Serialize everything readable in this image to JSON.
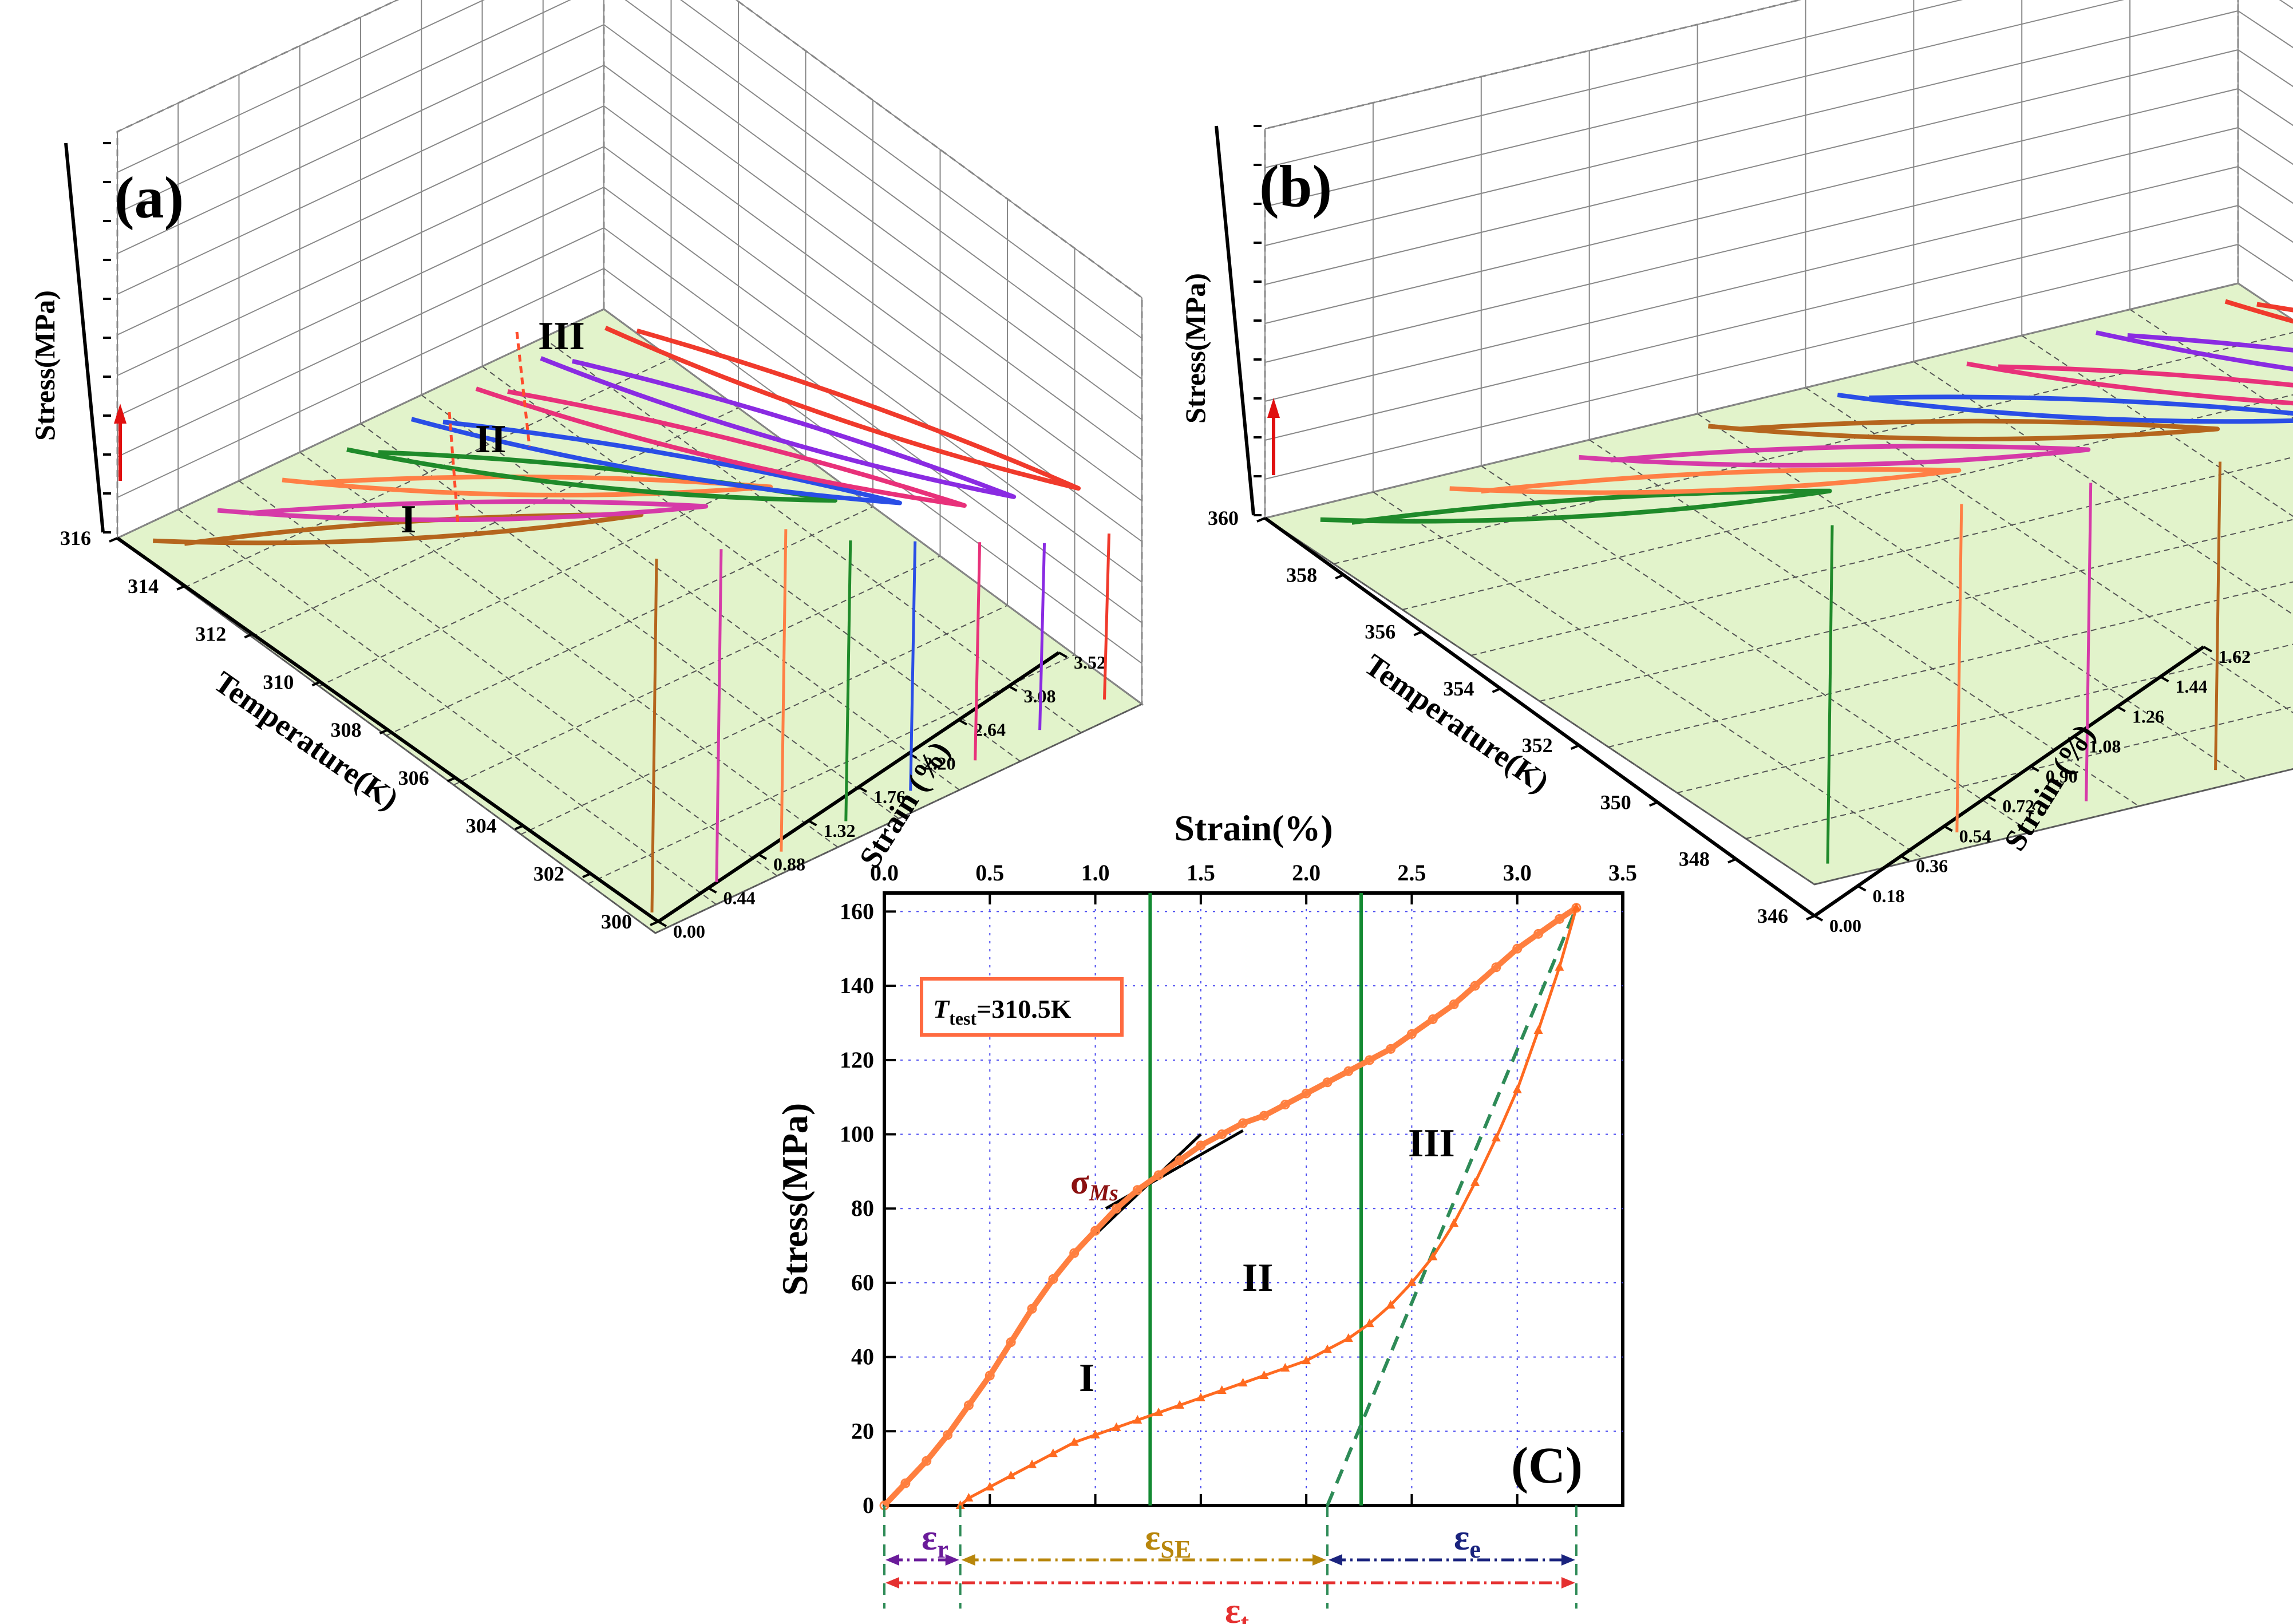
{
  "chart_data": [
    {
      "type": "line",
      "panel_label": "(a)",
      "zlabel": "Stress(MPa)",
      "ylabel": "Temperature(K)",
      "xlabel": "Strain (%)",
      "temperature_ticks": [
        "316",
        "314",
        "312",
        "310",
        "308",
        "306",
        "304",
        "302",
        "300"
      ],
      "strain_ticks": [
        "0.00",
        "0.44",
        "0.88",
        "1.32",
        "1.76",
        "2.20",
        "2.64",
        "3.08",
        "3.52"
      ],
      "region_labels": [
        "I",
        "II",
        "III"
      ],
      "strain_max": 3.52,
      "series": [
        {
          "name": "316K",
          "color": "#b5651d",
          "max_strain": 3.3,
          "max_stress": 175
        },
        {
          "name": "314K",
          "color": "#d63aa8",
          "max_strain": 3.3,
          "max_stress": 165
        },
        {
          "name": "312K",
          "color": "#ff7f45",
          "max_strain": 3.3,
          "max_stress": 160
        },
        {
          "name": "310K",
          "color": "#1f8a2a",
          "max_strain": 3.3,
          "max_stress": 140
        },
        {
          "name": "308K",
          "color": "#2a4ee6",
          "max_strain": 3.3,
          "max_stress": 125
        },
        {
          "name": "306K",
          "color": "#e8317a",
          "max_strain": 3.3,
          "max_stress": 110
        },
        {
          "name": "304K",
          "color": "#8a2be2",
          "max_strain": 3.2,
          "max_stress": 95
        },
        {
          "name": "302K",
          "color": "#f03a2c",
          "max_strain": 3.2,
          "max_stress": 85
        }
      ]
    },
    {
      "type": "line",
      "panel_label": "(b)",
      "zlabel": "Stress(MPa)",
      "ylabel": "Temperature(K)",
      "xlabel": "Strain (%)",
      "temperature_ticks": [
        "360",
        "358",
        "356",
        "354",
        "352",
        "350",
        "348",
        "346"
      ],
      "strain_ticks": [
        "0.00",
        "0.18",
        "0.36",
        "0.54",
        "0.72",
        "0.90",
        "1.08",
        "1.26",
        "1.44",
        "1.62"
      ],
      "strain_max": 1.62,
      "series": [
        {
          "name": "360K",
          "color": "#1f8a2a",
          "max_strain": 1.55,
          "max_stress": 175
        },
        {
          "name": "358K",
          "color": "#ff7f45",
          "max_strain": 1.55,
          "max_stress": 170
        },
        {
          "name": "356K",
          "color": "#d63aa8",
          "max_strain": 1.55,
          "max_stress": 165
        },
        {
          "name": "354K",
          "color": "#b5651d",
          "max_strain": 1.55,
          "max_stress": 160
        },
        {
          "name": "352K",
          "color": "#2a4ee6",
          "max_strain": 1.55,
          "max_stress": 150
        },
        {
          "name": "350K",
          "color": "#e8317a",
          "max_strain": 1.55,
          "max_stress": 140
        },
        {
          "name": "348K",
          "color": "#8a2be2",
          "max_strain": 1.55,
          "max_stress": 130
        },
        {
          "name": "346K",
          "color": "#f03a2c",
          "max_strain": 1.55,
          "max_stress": 110
        }
      ]
    },
    {
      "type": "line",
      "panel_label": "(C)",
      "title": "Strain(%)",
      "xlabel": "Strain(%)",
      "ylabel": "Stress(MPa)",
      "xlim": [
        0,
        3.5
      ],
      "ylim": [
        0,
        165
      ],
      "x_ticks": [
        "0.0",
        "0.5",
        "1.0",
        "1.5",
        "2.0",
        "2.5",
        "3.0",
        "3.5"
      ],
      "y_ticks": [
        "0",
        "20",
        "40",
        "60",
        "80",
        "100",
        "120",
        "140",
        "160"
      ],
      "legend_prefix": "T",
      "legend_sub": "test",
      "legend_value": "=310.5K",
      "sigma_symbol": "σ",
      "sigma_sub": "Ms",
      "region_labels": [
        "I",
        "II",
        "III"
      ],
      "eps_symbol": "ε",
      "eps_labels": [
        {
          "sub": "r"
        },
        {
          "sub": "SE"
        },
        {
          "sub": "e"
        },
        {
          "sub": "t"
        }
      ],
      "vertical_lines_x": [
        1.26,
        2.26
      ],
      "dashed_x": [
        0.36,
        2.1,
        3.3
      ],
      "series": [
        {
          "name": "loading",
          "color": "#ff7f3f",
          "x": [
            0,
            0.1,
            0.2,
            0.3,
            0.4,
            0.5,
            0.6,
            0.7,
            0.8,
            0.9,
            1.0,
            1.1,
            1.2,
            1.3,
            1.4,
            1.5,
            1.6,
            1.7,
            1.8,
            1.9,
            2.0,
            2.1,
            2.2,
            2.3,
            2.4,
            2.5,
            2.6,
            2.7,
            2.8,
            2.9,
            3.0,
            3.1,
            3.2,
            3.28
          ],
          "y": [
            0,
            6,
            12,
            19,
            27,
            35,
            44,
            53,
            61,
            68,
            74,
            80,
            85,
            89,
            93,
            97,
            100,
            103,
            105,
            108,
            111,
            114,
            117,
            120,
            123,
            127,
            131,
            135,
            140,
            145,
            150,
            154,
            158,
            161
          ]
        },
        {
          "name": "unloading",
          "color": "#ff6a20",
          "x": [
            3.28,
            3.2,
            3.1,
            3.0,
            2.9,
            2.8,
            2.7,
            2.6,
            2.5,
            2.4,
            2.3,
            2.2,
            2.1,
            2.0,
            1.9,
            1.8,
            1.7,
            1.6,
            1.5,
            1.4,
            1.3,
            1.2,
            1.1,
            1.0,
            0.9,
            0.8,
            0.7,
            0.6,
            0.5,
            0.4,
            0.36
          ],
          "y": [
            161,
            145,
            128,
            112,
            99,
            87,
            76,
            67,
            60,
            54,
            49,
            45,
            42,
            39,
            37,
            35,
            33,
            31,
            29,
            27,
            25,
            23,
            21,
            19,
            17,
            14,
            11,
            8,
            5,
            2,
            0
          ]
        }
      ]
    }
  ]
}
